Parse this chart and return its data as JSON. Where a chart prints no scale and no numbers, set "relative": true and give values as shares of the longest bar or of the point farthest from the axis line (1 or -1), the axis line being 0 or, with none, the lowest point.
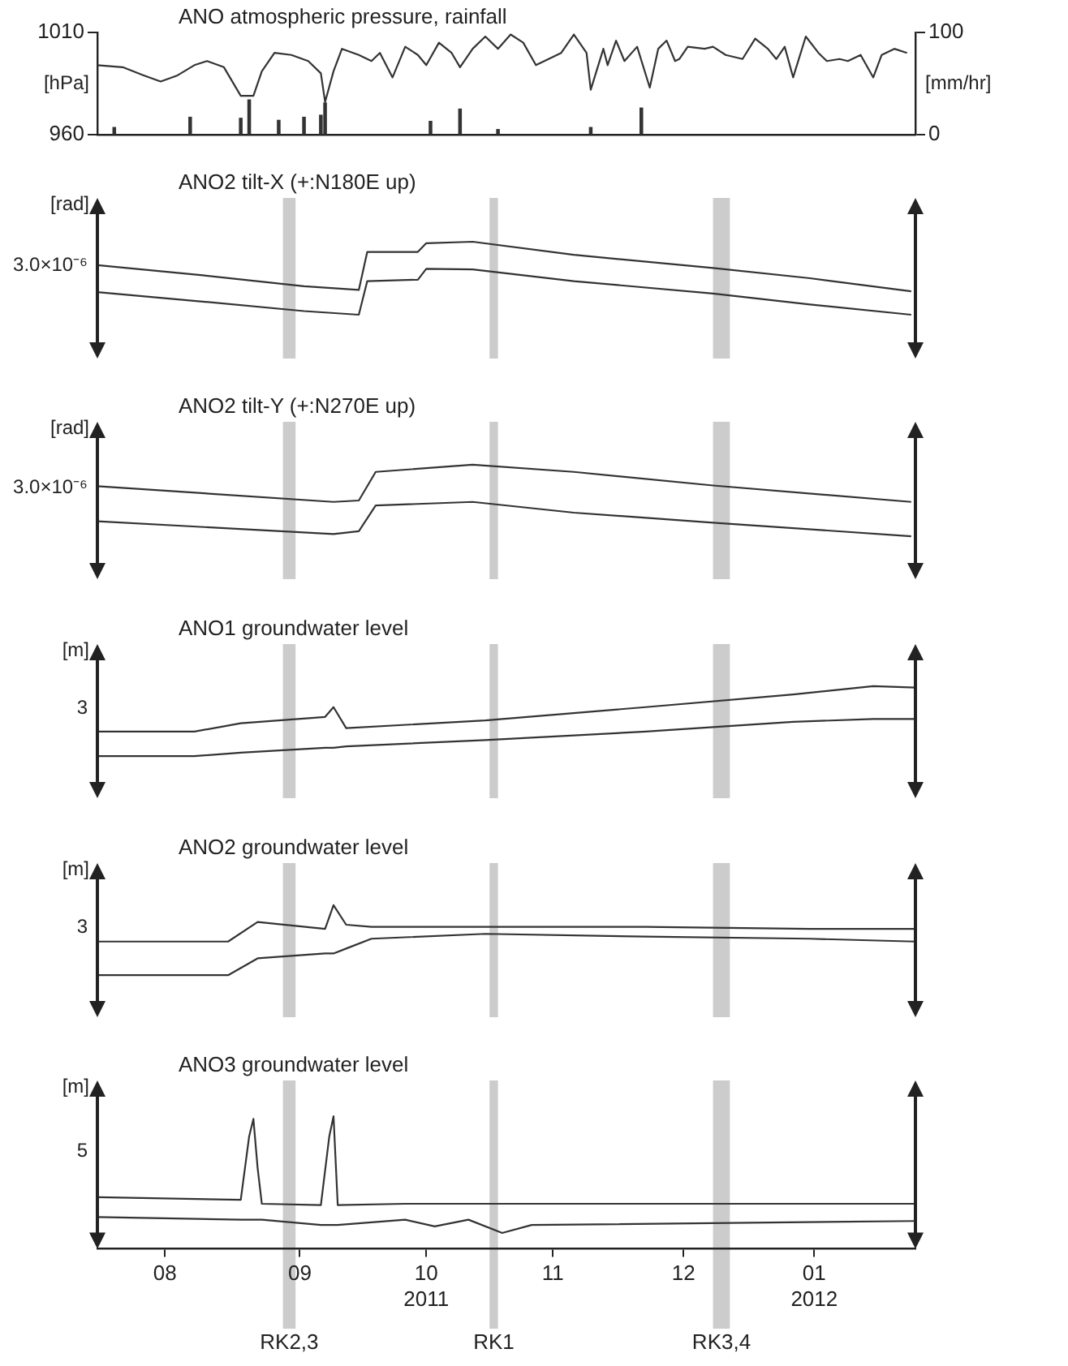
{
  "chart_data": [
    {
      "type": "line",
      "title": "ANO atmospheric pressure, rainfall",
      "ylabel": "[hPa]",
      "y2label": "[mm/hr]",
      "xlim": [
        "2011-07-30",
        "2012-02-09"
      ],
      "ylim": [
        960,
        1010
      ],
      "yticks": [
        960,
        1010
      ],
      "y2lim": [
        0,
        100
      ],
      "y2ticks": [
        0,
        100
      ],
      "tick_labels": "y",
      "series": [
        {
          "type": "line",
          "color": "#333333",
          "x": [
            "2011-07-30",
            "2011-08-05",
            "2011-08-10",
            "2011-08-14",
            "2011-08-18",
            "2011-08-22",
            "2011-08-25",
            "2011-08-29",
            "2011-09-02",
            "2011-09-05",
            "2011-09-07",
            "2011-09-10",
            "2011-09-14",
            "2011-09-18",
            "2011-09-21",
            "2011-09-22",
            "2011-09-24",
            "2011-09-26",
            "2011-09-30",
            "2011-10-03",
            "2011-10-05",
            "2011-10-08",
            "2011-10-11",
            "2011-10-14",
            "2011-10-16",
            "2011-10-19",
            "2011-10-22",
            "2011-10-24",
            "2011-10-27",
            "2011-10-30",
            "2011-11-02",
            "2011-11-05",
            "2011-11-08",
            "2011-11-11",
            "2011-11-14",
            "2011-11-17",
            "2011-11-20",
            "2011-11-23",
            "2011-11-24",
            "2011-11-27",
            "2011-11-28",
            "2011-11-30",
            "2011-12-02",
            "2011-12-05",
            "2011-12-08",
            "2011-12-10",
            "2011-12-12",
            "2011-12-14",
            "2011-12-15",
            "2011-12-17",
            "2011-12-21",
            "2011-12-23",
            "2011-12-26",
            "2011-12-30",
            "2012-01-02",
            "2012-01-05",
            "2012-01-07",
            "2012-01-09",
            "2012-01-11",
            "2012-01-14",
            "2012-01-17",
            "2012-01-19",
            "2012-01-22",
            "2012-01-24",
            "2012-01-27",
            "2012-01-30",
            "2012-02-01",
            "2012-02-04",
            "2012-02-07"
          ],
          "values": [
            994,
            993,
            989,
            986,
            989,
            994,
            996,
            993,
            979,
            979,
            991,
            1000,
            999,
            996,
            990,
            976,
            991,
            1002,
            999,
            996,
            1000,
            988,
            1003,
            999,
            994,
            1005,
            1000,
            993,
            1002,
            1008,
            1002,
            1009,
            1005,
            994,
            997,
            1000,
            1009,
            1000,
            982,
            1002,
            994,
            1006,
            996,
            1003,
            983,
            1002,
            1006,
            996,
            997,
            1003,
            1002,
            1003,
            999,
            997,
            1007,
            1002,
            997,
            1003,
            988,
            1008,
            1000,
            996,
            997,
            996,
            999,
            988,
            999,
            1002,
            1000
          ]
        },
        {
          "type": "bar",
          "axis": "y2",
          "color": "#333333",
          "x": [
            "2011-08-03",
            "2011-08-21",
            "2011-09-02",
            "2011-09-04",
            "2011-09-11",
            "2011-09-17",
            "2011-09-21",
            "2011-09-22",
            "2011-10-17",
            "2011-10-24",
            "2011-11-02",
            "2011-11-24",
            "2011-12-06"
          ],
          "values": [
            7,
            17,
            16,
            34,
            14,
            17,
            19,
            31,
            13,
            25,
            5,
            7,
            26
          ]
        }
      ]
    },
    {
      "type": "line",
      "relative": true,
      "title": "ANO2 tilt-X (+:N180E up)",
      "ylabel": "[rad]",
      "annotations": [
        "3.0×10⁻⁶"
      ],
      "xlim": [
        "2011-07-30",
        "2012-02-09"
      ],
      "tick_labels": false,
      "x": [
        "2011-07-30",
        "2011-08-24",
        "2011-09-17",
        "2011-09-30",
        "2011-10-02",
        "2011-10-14",
        "2011-10-16",
        "2011-10-27",
        "2011-11-20",
        "2011-12-23",
        "2012-01-15",
        "2012-02-08"
      ],
      "bands": [
        {
          "axis": "x",
          "from": "2011-09-12",
          "to": "2011-09-15",
          "color": "#cccccc"
        },
        {
          "axis": "x",
          "from": "2011-10-31",
          "to": "2011-11-02",
          "color": "#cccccc"
        },
        {
          "axis": "x",
          "from": "2011-12-23",
          "to": "2011-12-27",
          "color": "#cccccc"
        }
      ],
      "series": [
        {
          "color": "#333333",
          "values": [
            0.68,
            0.54,
            0.39,
            0.34,
            0.86,
            0.86,
            0.98,
            1.0,
            0.82,
            0.64,
            0.5,
            0.32
          ]
        },
        {
          "color": "#333333",
          "values": [
            0.31,
            0.18,
            0.05,
            0,
            0.46,
            0.48,
            0.63,
            0.62,
            0.46,
            0.29,
            0.14,
            0
          ]
        }
      ]
    },
    {
      "type": "line",
      "relative": true,
      "title": "ANO2 tilt-Y (+:N270E up)",
      "ylabel": "[rad]",
      "annotations": [
        "3.0×10⁻⁶"
      ],
      "xlim": [
        "2011-07-30",
        "2012-02-09"
      ],
      "tick_labels": false,
      "x": [
        "2011-07-30",
        "2011-09-24",
        "2011-09-30",
        "2011-10-04",
        "2011-10-27",
        "2011-11-20",
        "2011-12-23",
        "2012-02-08"
      ],
      "bands": [
        {
          "axis": "x",
          "from": "2011-09-12",
          "to": "2011-09-15",
          "color": "#cccccc"
        },
        {
          "axis": "x",
          "from": "2011-10-31",
          "to": "2011-11-02",
          "color": "#cccccc"
        },
        {
          "axis": "x",
          "from": "2011-12-23",
          "to": "2011-12-27",
          "color": "#cccccc"
        }
      ],
      "series": [
        {
          "color": "#333333",
          "values": [
            0.7,
            0.48,
            0.5,
            0.9,
            1.0,
            0.9,
            0.71,
            0.48
          ]
        },
        {
          "color": "#333333",
          "values": [
            0.21,
            0.03,
            0.07,
            0.43,
            0.48,
            0.33,
            0.19,
            0
          ]
        }
      ]
    },
    {
      "type": "line",
      "relative": true,
      "title": "ANO1 groundwater level",
      "ylabel": "[m]",
      "annotations": [
        "3"
      ],
      "xlim": [
        "2011-07-30",
        "2012-02-09"
      ],
      "tick_labels": false,
      "x": [
        "2011-07-30",
        "2011-08-22",
        "2011-09-02",
        "2011-09-22",
        "2011-09-24",
        "2011-09-27",
        "2011-10-30",
        "2011-12-07",
        "2012-01-11",
        "2012-01-30",
        "2012-02-09"
      ],
      "bands": [
        {
          "axis": "x",
          "from": "2011-09-12",
          "to": "2011-09-15",
          "color": "#cccccc"
        },
        {
          "axis": "x",
          "from": "2011-10-31",
          "to": "2011-11-02",
          "color": "#cccccc"
        },
        {
          "axis": "x",
          "from": "2011-12-23",
          "to": "2011-12-27",
          "color": "#cccccc"
        }
      ],
      "series": [
        {
          "color": "#333333",
          "values": [
            0.35,
            0.35,
            0.47,
            0.56,
            0.7,
            0.4,
            0.51,
            0.7,
            0.88,
            1.0,
            0.98
          ]
        },
        {
          "color": "#333333",
          "values": [
            0,
            0,
            0.05,
            0.12,
            0.12,
            0.14,
            0.23,
            0.35,
            0.49,
            0.53,
            0.53
          ]
        }
      ]
    },
    {
      "type": "line",
      "relative": true,
      "title": "ANO2 groundwater level",
      "ylabel": "[m]",
      "annotations": [
        "3"
      ],
      "xlim": [
        "2011-07-30",
        "2012-02-09"
      ],
      "tick_labels": false,
      "x": [
        "2011-07-30",
        "2011-08-30",
        "2011-09-06",
        "2011-09-22",
        "2011-09-24",
        "2011-09-27",
        "2011-10-03",
        "2011-10-30",
        "2011-12-07",
        "2012-01-15",
        "2012-02-09"
      ],
      "bands": [
        {
          "axis": "x",
          "from": "2011-09-12",
          "to": "2011-09-15",
          "color": "#cccccc"
        },
        {
          "axis": "x",
          "from": "2011-10-31",
          "to": "2011-11-02",
          "color": "#cccccc"
        },
        {
          "axis": "x",
          "from": "2011-12-23",
          "to": "2011-12-27",
          "color": "#cccccc"
        }
      ],
      "series": [
        {
          "color": "#333333",
          "values": [
            0.48,
            0.48,
            0.76,
            0.66,
            1.0,
            0.72,
            0.69,
            0.69,
            0.69,
            0.66,
            0.66
          ]
        },
        {
          "color": "#333333",
          "values": [
            0,
            0,
            0.24,
            0.31,
            0.31,
            0.38,
            0.52,
            0.59,
            0.55,
            0.52,
            0.48
          ]
        }
      ]
    },
    {
      "type": "line",
      "relative": true,
      "title": "ANO3 groundwater level",
      "ylabel": "[m]",
      "annotations": [
        "5"
      ],
      "xlim": [
        "2011-07-30",
        "2012-02-09"
      ],
      "tick_labels": "x",
      "xticks": [
        {
          "value": "2011-08-15",
          "label": "08"
        },
        {
          "value": "2011-09-16",
          "label": "09"
        },
        {
          "value": "2011-10-16",
          "label": "10\n2011"
        },
        {
          "value": "2011-11-15",
          "label": "11"
        },
        {
          "value": "2011-12-16",
          "label": "12"
        },
        {
          "value": "2012-01-16",
          "label": "01\n2012"
        }
      ],
      "x": [
        "2011-07-30",
        "2011-09-02",
        "2011-09-04",
        "2011-09-05",
        "2011-09-06",
        "2011-09-07",
        "2011-09-21",
        "2011-09-23",
        "2011-09-24",
        "2011-09-25",
        "2011-10-11",
        "2011-10-18",
        "2011-10-26",
        "2011-11-03",
        "2011-11-10",
        "2012-02-09"
      ],
      "bands": [
        {
          "axis": "x",
          "from": "2011-09-12",
          "to": "2011-09-15",
          "label": "RK2,3",
          "color": "#cccccc"
        },
        {
          "axis": "x",
          "from": "2011-10-31",
          "to": "2011-11-02",
          "label": "RK1",
          "color": "#cccccc"
        },
        {
          "axis": "x",
          "from": "2011-12-23",
          "to": "2011-12-27",
          "label": "RK3,4",
          "color": "#cccccc"
        }
      ],
      "series": [
        {
          "color": "#333333",
          "values": [
            0.39,
            0.37,
            0.85,
            0.98,
            0.61,
            0.34,
            0.33,
            0.85,
            1.0,
            0.33,
            0.34,
            0.34,
            0.34,
            0.34,
            0.34,
            0.34
          ]
        },
        {
          "color": "#333333",
          "values": [
            0.24,
            0.22,
            0.22,
            0.22,
            0.22,
            0.22,
            0.18,
            0.18,
            0.18,
            0.18,
            0.22,
            0.17,
            0.22,
            0.12,
            0.18,
            0.21
          ]
        }
      ]
    }
  ]
}
